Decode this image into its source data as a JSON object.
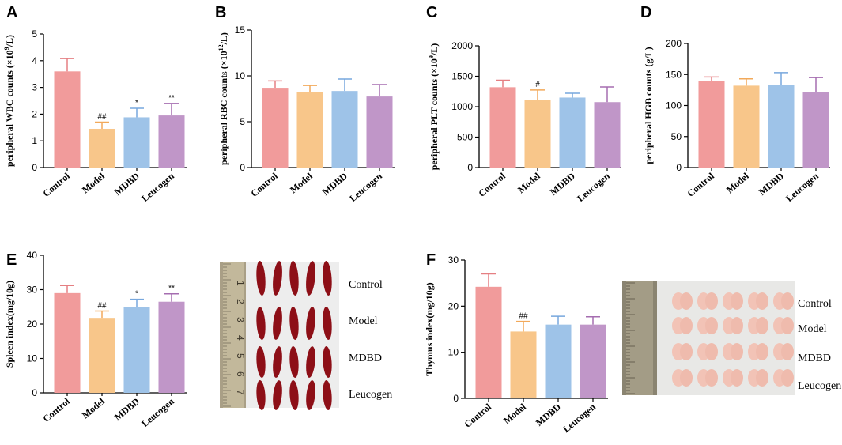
{
  "colors": {
    "Control": "#f19b9b",
    "Model": "#f8c68a",
    "MDBD": "#9ec3e8",
    "Leucogen": "#c096c8",
    "Control_err": "#e57f82",
    "Model_err": "#f2a95a",
    "MDBD_err": "#77a7dd",
    "Leucogen_err": "#a56db0"
  },
  "chart_data": [
    {
      "panel": "A",
      "type": "bar",
      "categories": [
        "Control",
        "Model",
        "MDBD",
        "Leucogen"
      ],
      "values": [
        3.6,
        1.45,
        1.88,
        1.95
      ],
      "errors": [
        0.48,
        0.25,
        0.34,
        0.45
      ],
      "annotations": [
        "",
        "##",
        "*",
        "**"
      ],
      "ylabel_parts": [
        "peripheral WBC counts (×10",
        "9",
        "/L)"
      ],
      "ylim": [
        0,
        5
      ],
      "yticks": [
        0,
        1,
        2,
        3,
        4,
        5
      ]
    },
    {
      "panel": "B",
      "type": "bar",
      "categories": [
        "Control",
        "Model",
        "MDBD",
        "Leucogen"
      ],
      "values": [
        8.7,
        8.25,
        8.35,
        7.75
      ],
      "errors": [
        0.75,
        0.7,
        1.3,
        1.3
      ],
      "annotations": [
        "",
        "",
        "",
        ""
      ],
      "ylabel_parts": [
        "peripheral RBC counts (×10",
        "12",
        "/L)"
      ],
      "ylim": [
        0,
        15
      ],
      "yticks": [
        0,
        5,
        10,
        15
      ]
    },
    {
      "panel": "C",
      "type": "bar",
      "categories": [
        "Control",
        "Model",
        "MDBD",
        "Leucogen"
      ],
      "values": [
        1320,
        1110,
        1150,
        1075
      ],
      "errors": [
        115,
        165,
        70,
        250
      ],
      "annotations": [
        "",
        "#",
        "",
        ""
      ],
      "ylabel_parts": [
        "peripheral PLT counts (×10",
        "9",
        "/L)"
      ],
      "ylim": [
        0,
        2000
      ],
      "yticks": [
        0,
        500,
        1000,
        1500,
        2000
      ]
    },
    {
      "panel": "D",
      "type": "bar",
      "categories": [
        "Control",
        "Model",
        "MDBD",
        "Leucogen"
      ],
      "values": [
        139,
        132,
        133,
        121
      ],
      "errors": [
        7,
        11,
        20,
        24
      ],
      "annotations": [
        "",
        "",
        "",
        ""
      ],
      "ylabel_parts": [
        "peripheral HGB counts (g/L)"
      ],
      "ylim": [
        0,
        200
      ],
      "yticks": [
        0,
        50,
        100,
        150,
        200
      ]
    },
    {
      "panel": "E",
      "type": "bar",
      "categories": [
        "Control",
        "Model",
        "MDBD",
        "Leucogen"
      ],
      "values": [
        29.0,
        21.8,
        25.0,
        26.5
      ],
      "errors": [
        2.2,
        2.0,
        2.2,
        2.3
      ],
      "annotations": [
        "",
        "##",
        "*",
        "**"
      ],
      "ylabel_parts": [
        "Spleen index(mg/10g)"
      ],
      "ylim": [
        0,
        40
      ],
      "yticks": [
        0,
        10,
        20,
        30,
        40
      ]
    },
    {
      "panel": "F",
      "type": "bar",
      "categories": [
        "Control",
        "Model",
        "MDBD",
        "Leucogen"
      ],
      "values": [
        24.2,
        14.5,
        16.0,
        16.0
      ],
      "errors": [
        2.8,
        2.2,
        1.8,
        1.7
      ],
      "annotations": [
        "",
        "##",
        "",
        ""
      ],
      "ylabel_parts": [
        "Thymus index(mg/10g)"
      ],
      "ylim": [
        0,
        30
      ],
      "yticks": [
        0,
        10,
        20,
        30
      ]
    }
  ],
  "photos": {
    "spleen_labels": [
      "Control",
      "Model",
      "MDBD",
      "Leucogen"
    ],
    "thymus_labels": [
      "Control",
      "Model",
      "MDBD",
      "Leucogen"
    ],
    "spleen_ruler_numbers": [
      "1",
      "2",
      "3",
      "4",
      "5",
      "6",
      "7"
    ]
  }
}
